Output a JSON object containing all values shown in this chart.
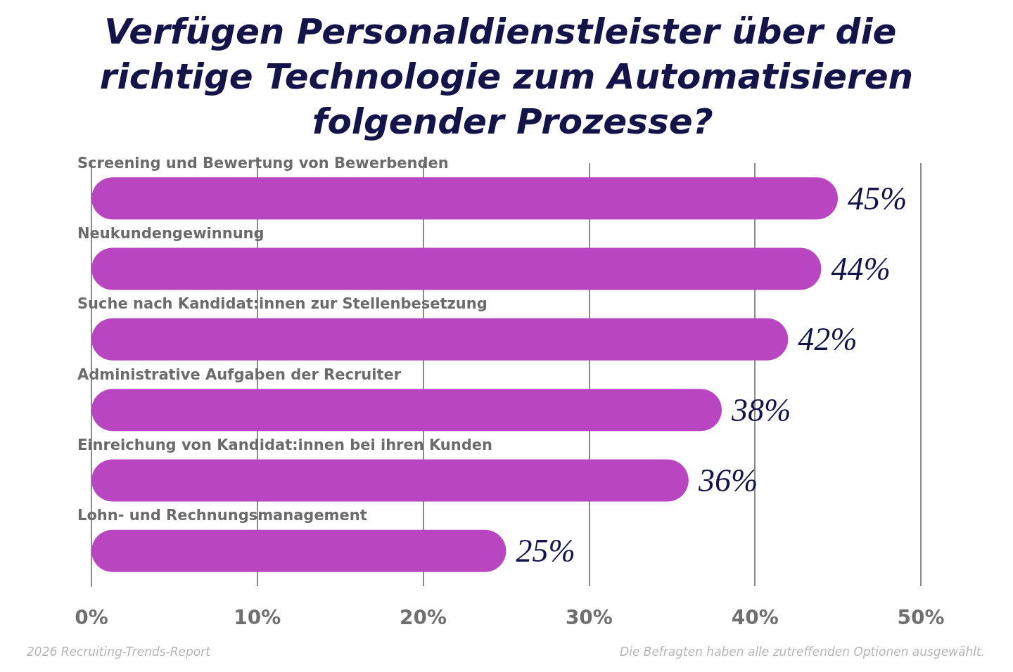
{
  "chart_data": {
    "type": "bar",
    "orientation": "horizontal",
    "title": "Verfügen Personaldienstleister über die richtige Technologie zum Automatisieren folgender Prozesse?",
    "categories": [
      "Screening und Bewertung von Bewerbenden",
      "Neukundengewinnung",
      "Suche nach Kandidat:innen zur Stellenbesetzung",
      "Administrative Aufgaben der Recruiter",
      "Einreichung von Kandidat:innen bei ihren Kunden",
      "Lohn- und Rechnungsmanagement"
    ],
    "values": [
      45,
      44,
      42,
      38,
      36,
      25
    ],
    "value_labels": [
      "45%",
      "44%",
      "42%",
      "38%",
      "36%",
      "25%"
    ],
    "color": "#b946c0",
    "xlim": [
      0,
      50
    ],
    "xticks": [
      {
        "value": 0,
        "label": "0%"
      },
      {
        "value": 10,
        "label": "10%"
      },
      {
        "value": 20,
        "label": "20%"
      },
      {
        "value": 30,
        "label": "30%"
      },
      {
        "value": 40,
        "label": "40%"
      },
      {
        "value": 50,
        "label": "50%"
      }
    ],
    "grid": "x",
    "annotations": [
      "2026 Recruiting-Trends-Report",
      "Die Befragten haben alle zutreffenden Optionen ausgewählt."
    ]
  }
}
